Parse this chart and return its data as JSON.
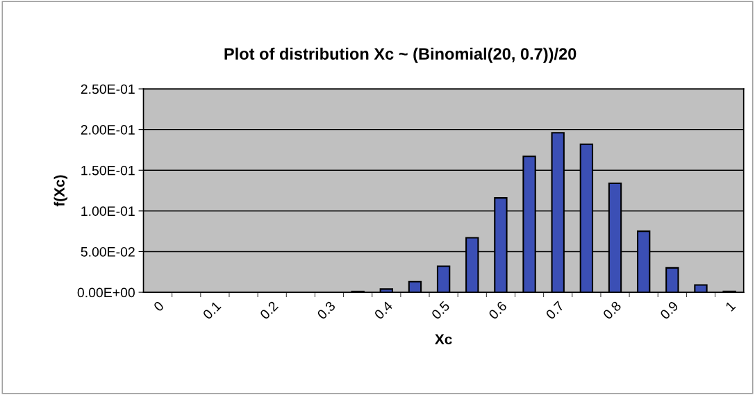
{
  "chart_data": {
    "type": "bar",
    "title": "Plot of distribution Xc ~ (Binomial(20, 0.7))/20",
    "xlabel": "Xc",
    "ylabel": "f(Xc)",
    "categories": [
      "0",
      null,
      "0.1",
      null,
      "0.2",
      null,
      "0.3",
      null,
      "0.4",
      null,
      "0.5",
      null,
      "0.6",
      null,
      "0.7",
      null,
      "0.8",
      null,
      "0.9",
      null,
      "1"
    ],
    "values": [
      0,
      0,
      0,
      0,
      0,
      0,
      0,
      0.001,
      0.004,
      0.013,
      0.032,
      0.067,
      0.116,
      0.167,
      0.196,
      0.182,
      0.134,
      0.075,
      0.03,
      0.009,
      0.001
    ],
    "color": "#3b4fb5",
    "ylim": [
      0,
      0.25
    ],
    "yticks": [
      {
        "value": 0,
        "label": "0.00E+00"
      },
      {
        "value": 0.05,
        "label": "5.00E-02"
      },
      {
        "value": 0.1,
        "label": "1.00E-01"
      },
      {
        "value": 0.15,
        "label": "1.50E-01"
      },
      {
        "value": 0.2,
        "label": "2.00E-01"
      },
      {
        "value": 0.25,
        "label": "2.50E-01"
      }
    ],
    "grid": "y",
    "legend": false
  }
}
